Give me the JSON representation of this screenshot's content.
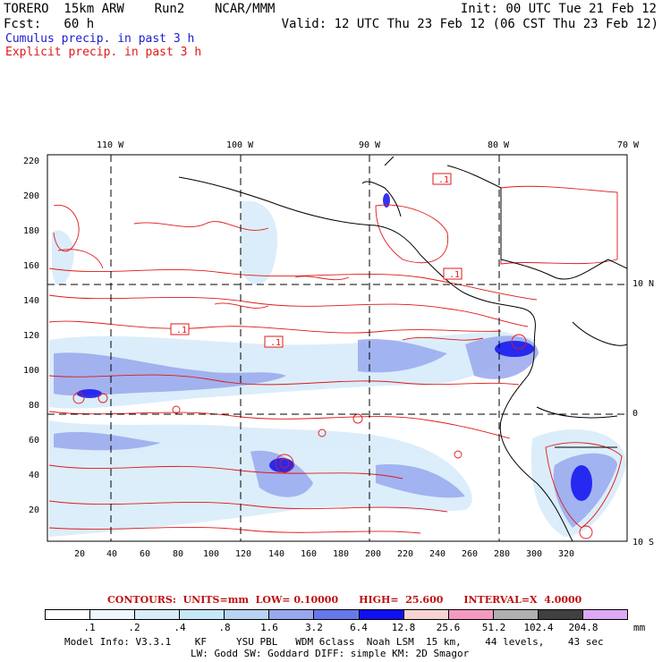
{
  "header": {
    "title_left": "TORERO  15km ARW    Run2    NCAR/MMM",
    "init": "Init: 00 UTC Tue 21 Feb 12",
    "fcst": "Fcst:   60 h",
    "valid": "Valid: 12 UTC Thu 23 Feb 12 (06 CST Thu 23 Feb 12)",
    "legend_cumulus": "Cumulus precip. in past 3 h",
    "legend_explicit": "Explicit precip. in past 3 h"
  },
  "map": {
    "lon_labels": [
      "110 W",
      "100 W",
      "90 W",
      "80 W",
      "70 W"
    ],
    "lat_labels": [
      "10 N",
      "0",
      "10 S"
    ],
    "y_ticks": [
      "220",
      "200",
      "180",
      "160",
      "140",
      "120",
      "100",
      "80",
      "60",
      "40",
      "20"
    ],
    "x_ticks": [
      "20",
      "40",
      "60",
      "80",
      "100",
      "120",
      "140",
      "160",
      "180",
      "200",
      "220",
      "240",
      "260",
      "280",
      "300",
      "320"
    ],
    "contour_labels": [
      ".1",
      ".1",
      ".1",
      ".1"
    ]
  },
  "contours_line": {
    "text": "CONTOURS:  UNITS=mm  LOW= 0.10000      HIGH=  25.600      INTERVAL=X  4.0000"
  },
  "colorbar": {
    "labels": [
      ".1",
      ".2",
      ".4",
      ".8",
      "1.6",
      "3.2",
      "6.4",
      "12.8",
      "25.6",
      "51.2",
      "102.4",
      "204.8"
    ],
    "unit": "mm",
    "colors": [
      "#ffffff",
      "#eef6ff",
      "#d8ecfa",
      "#c8e8f8",
      "#b8d4f2",
      "#98a8ee",
      "#6878ea",
      "#1010f0",
      "#f6d4d4",
      "#f49ac0",
      "#b0b0b0",
      "#404040",
      "#dcaaf4"
    ]
  },
  "footer": {
    "line1": "Model Info: V3.3.1    KF     YSU PBL   WDM 6class  Noah LSM  15 km,    44 levels,    43 sec",
    "line2": "LW: Godd SW: Goddard DIFF: simple KM: 2D Smagor"
  }
}
